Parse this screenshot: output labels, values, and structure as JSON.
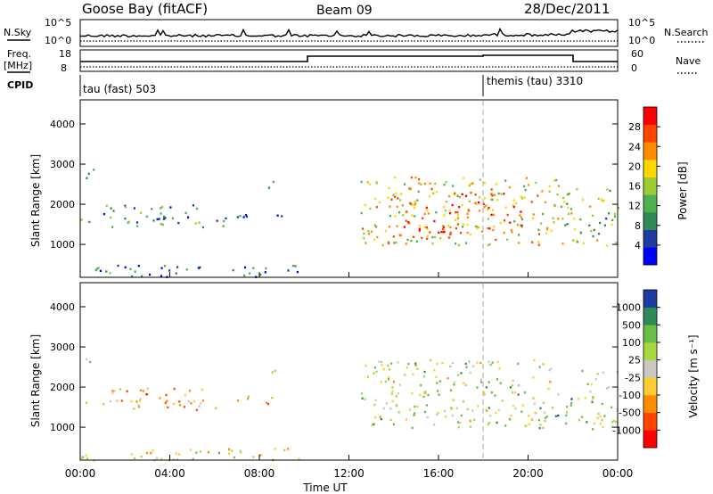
{
  "header": {
    "station": "Goose Bay (fitACF)",
    "beam": "Beam 09",
    "date": "28/Dec/2011"
  },
  "noise_panel": {
    "left_label": "N.Sky",
    "right_label": "N.Search",
    "left_ticks": [
      "10^5",
      "10^0"
    ],
    "right_ticks": [
      "10^5",
      "10^0"
    ]
  },
  "freq_panel": {
    "left_label": "Freq.",
    "left_unit": "[MHz]",
    "left_ticks": [
      "18",
      "8"
    ],
    "right_label": "Nave",
    "right_ticks": [
      "60",
      "0"
    ]
  },
  "cpid": {
    "label": "CPID",
    "segments": [
      {
        "name": "tau (fast) 503",
        "start_hour": 0
      },
      {
        "name": "themis (tau) 3310",
        "start_hour": 18.0
      }
    ]
  },
  "colors": {
    "power_scale": [
      "#0000ff",
      "#1e3ca0",
      "#2e8b57",
      "#4caf50",
      "#9acd32",
      "#ffd700",
      "#ff8c00",
      "#ff4500",
      "#ff0000"
    ],
    "velocity_scale": [
      "#1e3ca0",
      "#2e8b57",
      "#6abe45",
      "#a8d840",
      "#c8c8c0",
      "#ffcc33",
      "#ff8c00",
      "#ff4500",
      "#ff0000"
    ]
  },
  "chart_data": [
    {
      "type": "heatmap",
      "name": "power",
      "ylabel": "Slant Range [km]",
      "xlabel": "",
      "ylim": [
        180,
        4600
      ],
      "xlim": [
        0,
        24
      ],
      "yticks": [
        "1000",
        "2000",
        "3000",
        "4000"
      ],
      "colorbar": {
        "label": "Power [dB]",
        "ticks": [
          "4",
          "8",
          "12",
          "16",
          "20",
          "24",
          "28"
        ]
      },
      "regions": [
        {
          "t0": 0.1,
          "t1": 0.6,
          "r0": 2650,
          "r1": 2950,
          "level": 0.15
        },
        {
          "t0": 0.0,
          "t1": 2.6,
          "r0": 1450,
          "r1": 1700,
          "level": 0.25
        },
        {
          "t0": 1.0,
          "t1": 5.5,
          "r0": 1650,
          "r1": 2000,
          "level": 0.3
        },
        {
          "t0": 2.8,
          "t1": 6.5,
          "r0": 1450,
          "r1": 1700,
          "level": 0.3
        },
        {
          "t0": 6.8,
          "t1": 9.0,
          "r0": 1600,
          "r1": 1800,
          "level": 0.2
        },
        {
          "t0": 8.2,
          "t1": 8.8,
          "r0": 2350,
          "r1": 2600,
          "level": 0.3
        },
        {
          "t0": 12.5,
          "t1": 21.5,
          "r0": 1000,
          "r1": 2700,
          "level": 0.6
        },
        {
          "t0": 14.0,
          "t1": 20.0,
          "r0": 1300,
          "r1": 2300,
          "level": 0.8
        },
        {
          "t0": 21.5,
          "t1": 24.0,
          "r0": 950,
          "r1": 2500,
          "level": 0.45
        },
        {
          "t0": 0.0,
          "t1": 10.0,
          "r0": 200,
          "r1": 500,
          "level": 0.2
        }
      ]
    },
    {
      "type": "heatmap",
      "name": "velocity",
      "ylabel": "Slant Range [km]",
      "xlabel": "Time UT",
      "ylim": [
        180,
        4600
      ],
      "xlim": [
        0,
        24
      ],
      "yticks": [
        "1000",
        "2000",
        "3000",
        "4000"
      ],
      "xticks": [
        "00:00",
        "04:00",
        "08:00",
        "12:00",
        "16:00",
        "20:00",
        "00:00"
      ],
      "colorbar": {
        "label": "Velocity [m s⁻¹]",
        "ticks": [
          "1000",
          "500",
          "100",
          "25",
          "-25",
          "-100",
          "-500",
          "-1000"
        ]
      },
      "regions": [
        {
          "t0": 0.1,
          "t1": 0.6,
          "r0": 2650,
          "r1": 2950,
          "level": 0.45
        },
        {
          "t0": 0.0,
          "t1": 2.6,
          "r0": 1450,
          "r1": 1700,
          "level": 0.6
        },
        {
          "t0": 1.0,
          "t1": 5.5,
          "r0": 1650,
          "r1": 2000,
          "level": 0.65
        },
        {
          "t0": 2.8,
          "t1": 6.5,
          "r0": 1450,
          "r1": 1700,
          "level": 0.6
        },
        {
          "t0": 6.8,
          "t1": 9.0,
          "r0": 1600,
          "r1": 1800,
          "level": 0.6
        },
        {
          "t0": 8.2,
          "t1": 8.8,
          "r0": 2350,
          "r1": 2600,
          "level": 0.45
        },
        {
          "t0": 12.5,
          "t1": 21.0,
          "r0": 1000,
          "r1": 2700,
          "level": 0.45
        },
        {
          "t0": 21.0,
          "t1": 22.0,
          "r0": 1100,
          "r1": 1900,
          "level": 0.2
        },
        {
          "t0": 22.0,
          "t1": 24.0,
          "r0": 950,
          "r1": 2500,
          "level": 0.45
        },
        {
          "t0": 0.0,
          "t1": 10.0,
          "r0": 200,
          "r1": 500,
          "level": 0.5
        }
      ]
    }
  ]
}
